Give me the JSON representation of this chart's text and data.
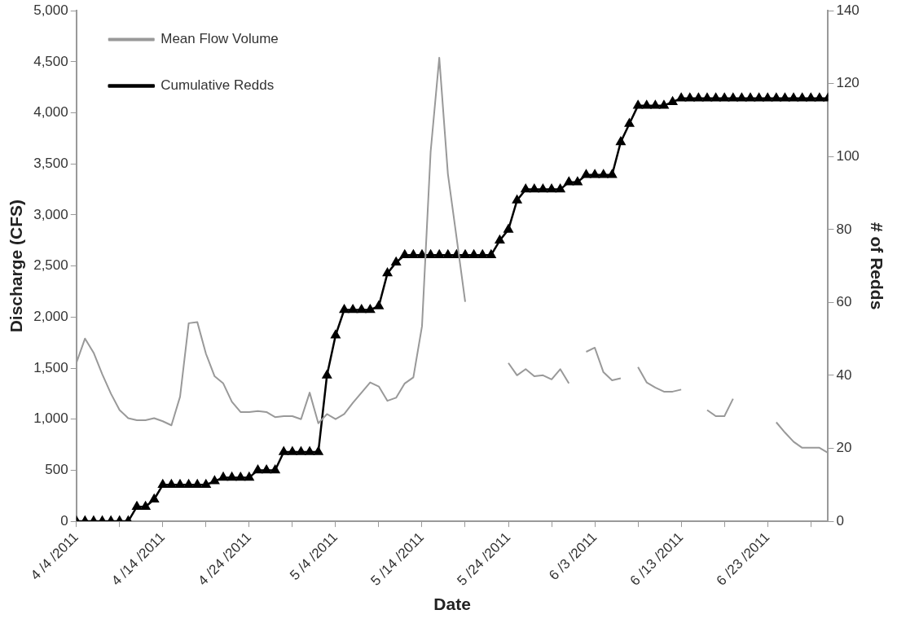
{
  "chart_data": {
    "type": "line",
    "xlabel": "Date",
    "ylabel": "Discharge (CFS)",
    "y2label": "# of Redds",
    "x": [
      "2011-04-04",
      "2011-04-05",
      "2011-04-06",
      "2011-04-07",
      "2011-04-08",
      "2011-04-09",
      "2011-04-10",
      "2011-04-11",
      "2011-04-12",
      "2011-04-13",
      "2011-04-14",
      "2011-04-15",
      "2011-04-16",
      "2011-04-17",
      "2011-04-18",
      "2011-04-19",
      "2011-04-20",
      "2011-04-21",
      "2011-04-22",
      "2011-04-23",
      "2011-04-24",
      "2011-04-25",
      "2011-04-26",
      "2011-04-27",
      "2011-04-28",
      "2011-04-29",
      "2011-04-30",
      "2011-05-01",
      "2011-05-02",
      "2011-05-03",
      "2011-05-04",
      "2011-05-05",
      "2011-05-06",
      "2011-05-07",
      "2011-05-08",
      "2011-05-09",
      "2011-05-10",
      "2011-05-11",
      "2011-05-12",
      "2011-05-13",
      "2011-05-14",
      "2011-05-15",
      "2011-05-16",
      "2011-05-17",
      "2011-05-18",
      "2011-05-19",
      "2011-05-20",
      "2011-05-21",
      "2011-05-22",
      "2011-05-23",
      "2011-05-24",
      "2011-05-25",
      "2011-05-26",
      "2011-05-27",
      "2011-05-28",
      "2011-05-29",
      "2011-05-30",
      "2011-05-31",
      "2011-06-01",
      "2011-06-02",
      "2011-06-03",
      "2011-06-04",
      "2011-06-05",
      "2011-06-06",
      "2011-06-07",
      "2011-06-08",
      "2011-06-09",
      "2011-06-10",
      "2011-06-11",
      "2011-06-12",
      "2011-06-13",
      "2011-06-14",
      "2011-06-15",
      "2011-06-16",
      "2011-06-17",
      "2011-06-18",
      "2011-06-19",
      "2011-06-20",
      "2011-06-21",
      "2011-06-22",
      "2011-06-23",
      "2011-06-24",
      "2011-06-25",
      "2011-06-26",
      "2011-06-27",
      "2011-06-28",
      "2011-06-29",
      "2011-06-30"
    ],
    "series": [
      {
        "name": "Mean Flow Volume",
        "color": "#999999",
        "marker": "none",
        "values": [
          1550,
          1790,
          1650,
          1440,
          1250,
          1090,
          1010,
          990,
          990,
          1010,
          980,
          940,
          1220,
          1940,
          1950,
          1640,
          1420,
          1350,
          1170,
          1070,
          1070,
          1080,
          1070,
          1020,
          1030,
          1030,
          1000,
          1260,
          960,
          1050,
          1000,
          1050,
          1160,
          1260,
          1360,
          1320,
          1180,
          1210,
          1350,
          1410,
          1910,
          3620,
          4540,
          3400,
          2780,
          2150,
          null,
          null,
          null,
          null,
          1550,
          1430,
          1490,
          1420,
          1430,
          1390,
          1490,
          1350,
          null,
          1660,
          1700,
          1460,
          1380,
          1400,
          null,
          1510,
          1360,
          1310,
          1270,
          1270,
          1290,
          null,
          null,
          1090,
          1030,
          1030,
          1200,
          null,
          null,
          null,
          null,
          970,
          870,
          780,
          720,
          720,
          720,
          670
        ]
      },
      {
        "name": "Cumulative Redds",
        "color": "#000000",
        "axis": "y2",
        "marker": "triangle",
        "values": [
          0,
          0,
          0,
          0,
          0,
          0,
          0,
          4,
          4,
          6,
          10,
          10,
          10,
          10,
          10,
          10,
          11,
          12,
          12,
          12,
          12,
          14,
          14,
          14,
          19,
          19,
          19,
          19,
          19,
          40,
          51,
          58,
          58,
          58,
          58,
          59,
          68,
          71,
          73,
          73,
          73,
          73,
          73,
          73,
          73,
          73,
          73,
          73,
          73,
          77,
          80,
          88,
          91,
          91,
          91,
          91,
          91,
          93,
          93,
          95,
          95,
          95,
          95,
          104,
          109,
          114,
          114,
          114,
          114,
          115,
          116,
          116,
          116,
          116,
          116,
          116,
          116,
          116,
          116,
          116,
          116,
          116,
          116,
          116,
          116,
          116,
          116,
          116
        ]
      }
    ],
    "xlim": [
      "2011-04-04",
      "2011-06-30"
    ],
    "xticks": [
      {
        "value": "2011-04-04",
        "label": "4 /4 /2011"
      },
      {
        "value": "2011-04-09",
        "label": null
      },
      {
        "value": "2011-04-14",
        "label": "4 /14 /2011"
      },
      {
        "value": "2011-04-19",
        "label": null
      },
      {
        "value": "2011-04-24",
        "label": "4 /24 /2011"
      },
      {
        "value": "2011-04-29",
        "label": null
      },
      {
        "value": "2011-05-04",
        "label": "5 /4 /2011"
      },
      {
        "value": "2011-05-09",
        "label": null
      },
      {
        "value": "2011-05-14",
        "label": "5 /14 /2011"
      },
      {
        "value": "2011-05-19",
        "label": null
      },
      {
        "value": "2011-05-24",
        "label": "5 /24 /2011"
      },
      {
        "value": "2011-05-29",
        "label": null
      },
      {
        "value": "2011-06-03",
        "label": "6 /3 /2011"
      },
      {
        "value": "2011-06-08",
        "label": null
      },
      {
        "value": "2011-06-13",
        "label": "6 /13 /2011"
      },
      {
        "value": "2011-06-18",
        "label": null
      },
      {
        "value": "2011-06-23",
        "label": "6 /23 /2011"
      },
      {
        "value": "2011-06-28",
        "label": null
      }
    ],
    "ylim": [
      0,
      5000
    ],
    "yticks": [
      0,
      500,
      {
        "value": 1000,
        "label": "1,000"
      },
      {
        "value": 1500,
        "label": "1,500"
      },
      {
        "value": 2000,
        "label": "2,000"
      },
      {
        "value": 2500,
        "label": "2,500"
      },
      {
        "value": 3000,
        "label": "3,000"
      },
      {
        "value": 3500,
        "label": "3,500"
      },
      {
        "value": 4000,
        "label": "4,000"
      },
      {
        "value": 4500,
        "label": "4,500"
      },
      {
        "value": 5000,
        "label": "5,000"
      }
    ],
    "y2lim": [
      0,
      140
    ],
    "y2ticks": [
      0,
      20,
      40,
      60,
      80,
      100,
      120,
      140
    ],
    "grid": false,
    "legend": "top left"
  }
}
